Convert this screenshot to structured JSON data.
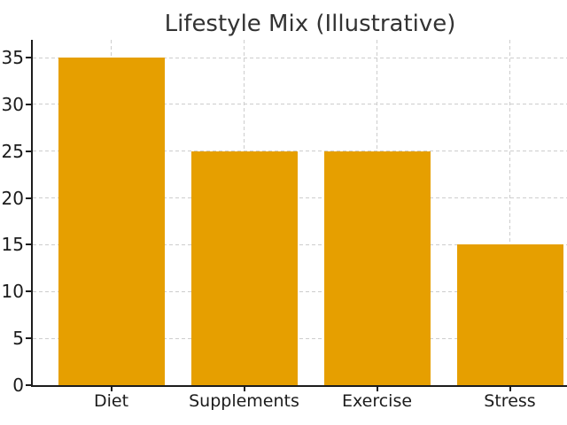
{
  "chart_data": {
    "type": "bar",
    "title": "Lifestyle Mix (Illustrative)",
    "categories": [
      "Diet",
      "Supplements",
      "Exercise",
      "Stress"
    ],
    "values": [
      35,
      25,
      25,
      15
    ],
    "xlabel": "",
    "ylabel": "",
    "yticks": [
      0,
      5,
      10,
      15,
      20,
      25,
      30,
      35
    ],
    "ylim": [
      0,
      36.9
    ],
    "xlim": [
      -0.59,
      3.43
    ],
    "bar_width_fraction": 0.8,
    "bar_color": "#E69F00",
    "grid": "both",
    "grid_style": "dashed",
    "grid_color": "#cdcdcd",
    "axis_color": "#1c1c1c",
    "text_color": "#1c1c1c",
    "title_color": "#333333",
    "background_color": "#ffffff",
    "legend": "none",
    "spines": [
      "left",
      "bottom"
    ]
  }
}
